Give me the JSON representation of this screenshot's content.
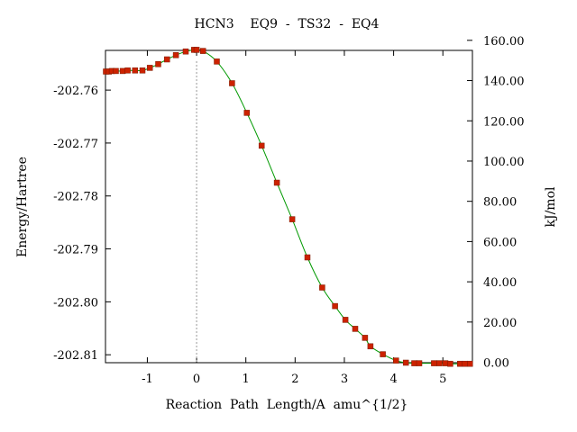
{
  "chart_data": {
    "type": "line",
    "title": "HCN3    EQ9  -  TS32  -  EQ4",
    "xlabel": "Reaction  Path  Length/A  amu^{1/2}",
    "ylabel": "Energy/Hartree",
    "y2label": "kJ/mol",
    "xlim": [
      -1.85,
      5.6
    ],
    "ylim": [
      -202.8115,
      -202.7525
    ],
    "y2lim": [
      -0.2,
      155.0
    ],
    "x_ticks": [
      -1,
      0,
      1,
      2,
      3,
      4,
      5
    ],
    "x_tick_labels": [
      "-1",
      "0",
      "1",
      "2",
      "3",
      "4",
      "5"
    ],
    "y_ticks": [
      -202.76,
      -202.77,
      -202.78,
      -202.79,
      -202.8,
      -202.81
    ],
    "y_tick_labels": [
      "-202.76",
      "-202.77",
      "-202.78",
      "-202.79",
      "-202.80",
      "-202.81"
    ],
    "y2_ticks": [
      0,
      20,
      40,
      60,
      80,
      100,
      120,
      140,
      160
    ],
    "y2_tick_labels": [
      "0.00",
      "20.00",
      "40.00",
      "60.00",
      "80.00",
      "100.00",
      "120.00",
      "140.00",
      "160.00"
    ],
    "ts_marker_x": 0,
    "grid": false,
    "curve_color": "#009900",
    "point_color": "#cc2200",
    "points": [
      [
        -1.84,
        -202.7565
      ],
      [
        -1.78,
        -202.7565
      ],
      [
        -1.72,
        -202.7564
      ],
      [
        -1.64,
        -202.7564
      ],
      [
        -1.5,
        -202.7564
      ],
      [
        -1.4,
        -202.7563
      ],
      [
        -1.25,
        -202.7563
      ],
      [
        -1.1,
        -202.7563
      ],
      [
        -0.95,
        -202.7558
      ],
      [
        -0.78,
        -202.7551
      ],
      [
        -0.6,
        -202.7542
      ],
      [
        -0.42,
        -202.7534
      ],
      [
        -0.22,
        -202.7527
      ],
      [
        -0.05,
        -202.7524
      ],
      [
        0.0,
        -202.7524
      ],
      [
        0.13,
        -202.7526
      ],
      [
        0.41,
        -202.7546
      ],
      [
        0.72,
        -202.7587
      ],
      [
        1.02,
        -202.7643
      ],
      [
        1.32,
        -202.7705
      ],
      [
        1.63,
        -202.7775
      ],
      [
        1.94,
        -202.7844
      ],
      [
        2.25,
        -202.7916
      ],
      [
        2.55,
        -202.7973
      ],
      [
        2.81,
        -202.8008
      ],
      [
        3.02,
        -202.8034
      ],
      [
        3.22,
        -202.8051
      ],
      [
        3.42,
        -202.8068
      ],
      [
        3.53,
        -202.8084
      ],
      [
        3.78,
        -202.8099
      ],
      [
        4.05,
        -202.8111
      ],
      [
        4.25,
        -202.8115
      ],
      [
        4.42,
        -202.8116
      ],
      [
        4.52,
        -202.8116
      ],
      [
        4.82,
        -202.8116
      ],
      [
        4.93,
        -202.8116
      ],
      [
        5.05,
        -202.8116
      ],
      [
        5.15,
        -202.8117
      ],
      [
        5.35,
        -202.8117
      ],
      [
        5.45,
        -202.8117
      ],
      [
        5.55,
        -202.8117
      ]
    ]
  }
}
